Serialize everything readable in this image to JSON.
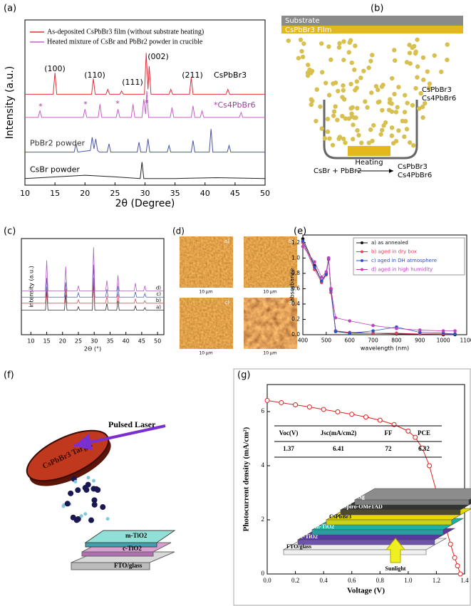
{
  "chart_data": [
    {
      "type": "line",
      "panel": "(a)",
      "x_label": "2θ (Degree)",
      "y_label": "Intensity (a.u.)",
      "xlim": [
        10,
        50
      ],
      "xticks": [
        10,
        15,
        20,
        25,
        30,
        35,
        40,
        45,
        50
      ],
      "ylim": [
        0,
        10
      ],
      "annotations": [
        "(100)",
        "(110)",
        "(111)",
        "(002)",
        "(211)",
        "CsPbBr3",
        "*",
        "*",
        "*",
        "*",
        "*Cs4PbBr6"
      ],
      "series": [
        {
          "name": "As-deposited CsPbBr3 film (without substrate heating)",
          "color": "#e0303a",
          "x": [
            10,
            14.7,
            15,
            15.3,
            21.1,
            21.4,
            21.7,
            23.5,
            23.8,
            24.1,
            25.8,
            26.1,
            26.4,
            29.9,
            30.2,
            30.5,
            30.7,
            31,
            34,
            34.3,
            34.6,
            37.4,
            37.7,
            38,
            43.5,
            43.8,
            44.1,
            50
          ],
          "values": [
            5.5,
            5.5,
            6.8,
            5.5,
            5.5,
            6.45,
            5.5,
            5.5,
            5.8,
            5.5,
            5.5,
            5.7,
            5.5,
            5.5,
            8.0,
            5.8,
            7.2,
            5.5,
            5.5,
            5.8,
            5.5,
            5.5,
            6.5,
            5.5,
            5.5,
            5.8,
            5.5,
            5.5
          ]
        },
        {
          "name": "Heated mixture of CsBr and PbBr2 powder in crucible",
          "color": "#c760c7",
          "x": [
            10,
            12.2,
            12.5,
            12.8,
            19.7,
            20,
            20.3,
            22.2,
            22.5,
            22.8,
            25.2,
            25.5,
            25.8,
            27.7,
            28,
            28.3,
            29.5,
            29.8,
            30.1,
            30.3,
            30.6,
            34.2,
            34.5,
            34.8,
            37.7,
            38,
            38.3,
            39.2,
            39.5,
            39.8,
            45.7,
            46,
            46.3,
            50
          ],
          "values": [
            4.1,
            4.1,
            4.5,
            4.1,
            4.1,
            4.6,
            4.1,
            4.1,
            4.9,
            4.1,
            4.1,
            4.6,
            4.1,
            4.1,
            4.9,
            4.1,
            4.1,
            5.2,
            4.3,
            5.7,
            4.1,
            4.1,
            4.7,
            4.1,
            4.1,
            4.8,
            4.1,
            4.1,
            4.5,
            4.1,
            4.1,
            4.4,
            4.1,
            4.1
          ]
        },
        {
          "name": "PbBr2 powder",
          "color": "#4a55a8",
          "x": [
            10,
            18.2,
            18.5,
            18.8,
            20.9,
            21.2,
            21.5,
            21.8,
            22.1,
            22.4,
            23.7,
            24,
            24.3,
            28.7,
            29,
            29.3,
            30.2,
            30.5,
            30.8,
            33.7,
            34,
            34.3,
            37.7,
            38,
            38.3,
            40.7,
            41,
            41.3,
            43.7,
            44,
            44.3,
            50
          ],
          "values": [
            2.0,
            2.0,
            2.5,
            2.0,
            2.1,
            2.9,
            2.2,
            2.8,
            2.1,
            2.0,
            2.0,
            2.5,
            2.0,
            2.0,
            2.6,
            2.0,
            2.0,
            2.8,
            2.0,
            2.0,
            2.4,
            2.0,
            2.0,
            2.7,
            2.0,
            2.0,
            3.4,
            2.0,
            2.0,
            2.4,
            2.0,
            2.0
          ]
        },
        {
          "name": "CsBr powder",
          "color": "#222222",
          "x": [
            10,
            20,
            25,
            29.2,
            29.5,
            29.8,
            35,
            42,
            50
          ],
          "values": [
            0.4,
            0.6,
            0.5,
            0.4,
            1.4,
            0.4,
            0.4,
            0.45,
            0.4
          ]
        }
      ]
    },
    {
      "type": "line",
      "panel": "(c)",
      "x_label": "2Θ (°)",
      "y_label": "intensity (a.u.)",
      "xlim": [
        7,
        52
      ],
      "xticks": [
        10,
        15,
        20,
        25,
        30,
        35,
        40,
        45,
        50
      ],
      "ylim": [
        0,
        11
      ],
      "x": [
        7,
        14.6,
        15,
        15.4,
        20.6,
        21,
        21.4,
        24.6,
        25,
        25.4,
        29.4,
        29.8,
        30.2,
        33.6,
        34,
        34.4,
        37.1,
        37.5,
        37.9,
        42.6,
        43,
        43.4,
        45.6,
        46,
        46.4,
        52
      ],
      "series": [
        {
          "name": "a)",
          "color": "#333333",
          "values": [
            2.8,
            2.8,
            5.0,
            2.8,
            2.8,
            4.6,
            2.8,
            2.8,
            3.2,
            2.8,
            2.8,
            6.0,
            2.8,
            2.8,
            3.6,
            2.8,
            2.8,
            3.9,
            2.8,
            2.8,
            3.3,
            2.8,
            2.8,
            3.1,
            2.8,
            2.8
          ]
        },
        {
          "name": "b)",
          "color": "#e05060",
          "values": [
            3.6,
            3.6,
            5.5,
            3.6,
            3.6,
            5.2,
            3.6,
            3.6,
            4.0,
            3.6,
            3.6,
            6.5,
            3.6,
            3.6,
            4.4,
            3.6,
            3.6,
            4.7,
            3.6,
            3.6,
            4.1,
            3.6,
            3.6,
            3.9,
            3.6,
            3.6
          ]
        },
        {
          "name": "c)",
          "color": "#5060b0",
          "values": [
            4.3,
            4.3,
            6.5,
            4.3,
            4.3,
            6.0,
            4.3,
            4.3,
            4.8,
            4.3,
            4.3,
            8.0,
            4.3,
            4.3,
            5.2,
            4.3,
            4.3,
            5.6,
            4.3,
            4.3,
            4.9,
            4.3,
            4.3,
            4.7,
            4.3,
            4.3
          ]
        },
        {
          "name": "d)",
          "color": "#b060c0",
          "values": [
            5,
            5,
            8.5,
            5,
            5,
            7.8,
            5,
            5,
            5.6,
            5,
            5,
            10,
            5,
            5,
            6.2,
            5,
            5,
            6.8,
            5,
            5,
            5.9,
            5,
            5,
            5.6,
            5,
            5
          ]
        }
      ]
    },
    {
      "type": "line",
      "panel": "(e)",
      "x_label": "wavelength (nm)",
      "y_label": "absorbance",
      "xlim": [
        400,
        1100
      ],
      "xticks": [
        400,
        500,
        600,
        700,
        800,
        900,
        1000,
        1100
      ],
      "ylim": [
        0,
        1.3
      ],
      "yticks": [
        {
          "value": 0,
          "label": "0.0"
        },
        0.2,
        0.4,
        0.6,
        0.8,
        {
          "value": 1,
          "label": "1.0"
        },
        1.2
      ],
      "x": [
        400,
        450,
        480,
        500,
        510,
        520,
        540,
        600,
        700,
        800,
        900,
        1000,
        1050
      ],
      "series": [
        {
          "name": "a) as annealed",
          "color": "#111111",
          "values": [
            1.25,
            0.9,
            0.7,
            0.8,
            1.0,
            0.6,
            0.05,
            0.02,
            0.02,
            0.01,
            0.01,
            0.0,
            0.0
          ]
        },
        {
          "name": "b) aged in dry box",
          "color": "#e8405a",
          "values": [
            1.2,
            0.85,
            0.68,
            0.78,
            0.98,
            0.55,
            0.05,
            0.03,
            0.02,
            0.02,
            0.01,
            0.01,
            0.01
          ]
        },
        {
          "name": "c) aged in DH atmosphere",
          "color": "#3050c0",
          "values": [
            1.22,
            0.88,
            0.7,
            0.79,
            0.99,
            0.58,
            0.04,
            0.02,
            0.05,
            0.1,
            0.03,
            0.02,
            0.01
          ]
        },
        {
          "name": "d) aged in high humidity",
          "color": "#c040c0",
          "values": [
            1.15,
            0.95,
            0.75,
            0.82,
            1.0,
            0.6,
            0.22,
            0.18,
            0.12,
            0.08,
            0.06,
            0.05,
            0.05
          ]
        }
      ]
    },
    {
      "type": "line",
      "panel": "(g)",
      "x_label": "Voltage (V)",
      "y_label": "Photocurrent density (mA/cm²)",
      "xlim": [
        0,
        1.4
      ],
      "xticks": [
        {
          "value": 0,
          "label": "0.0"
        },
        0.2,
        0.4,
        0.6,
        0.8,
        {
          "value": 1,
          "label": "1.0"
        },
        1.2,
        1.4
      ],
      "ylim": [
        0,
        7
      ],
      "yticks": [
        0,
        2,
        4,
        6
      ],
      "series": [
        {
          "name": "J-V",
          "color": "#e02020",
          "x": [
            0,
            0.1,
            0.2,
            0.3,
            0.4,
            0.5,
            0.6,
            0.7,
            0.8,
            0.9,
            1.0,
            1.05,
            1.1,
            1.15,
            1.2,
            1.25,
            1.3,
            1.33,
            1.35,
            1.37
          ],
          "values": [
            6.41,
            6.33,
            6.25,
            6.17,
            6.08,
            5.99,
            5.9,
            5.8,
            5.68,
            5.52,
            5.28,
            5.05,
            4.65,
            4.0,
            3.05,
            2.05,
            1.1,
            0.6,
            0.3,
            0.0
          ]
        }
      ],
      "table": {
        "header": [
          "Voc(V)",
          "Jsc(mA/cm2)",
          "FF",
          "PCE"
        ],
        "rows": [
          [
            1.37,
            6.41,
            72,
            6.32
          ]
        ]
      },
      "inset_layers": [
        "FTO/glass",
        "c-TiO2",
        "m-TiO2",
        "CsPbBr3",
        "Spiro-OMeTAD",
        "Ag"
      ],
      "inset_light": "Sunlight"
    }
  ],
  "diagram_b": {
    "panel": "(b)",
    "substrate": "Substrate",
    "film": "CsPbBr3 Film",
    "products_top": [
      "CsPbBr3",
      "Cs4PbBr6"
    ],
    "reactants": "CsBr + PbBr2",
    "heating": "Heating",
    "products_bottom": [
      "CsPbBr3",
      "Cs4PbBr6"
    ]
  },
  "afm": {
    "panel": "(d)",
    "images": [
      {
        "label": "a)",
        "scale": "10 μm"
      },
      {
        "label": "b)",
        "scale": "10 μm"
      },
      {
        "label": "c)",
        "scale": "10 μm"
      },
      {
        "label": "d)",
        "scale": "10 μm"
      }
    ]
  },
  "diagram_f": {
    "panel": "(f)",
    "target": "CsPbBr3 Target",
    "laser": "Pulsed Laser",
    "layers": [
      "m-TiO2",
      "c-TiO2",
      "FTO/glass"
    ]
  }
}
